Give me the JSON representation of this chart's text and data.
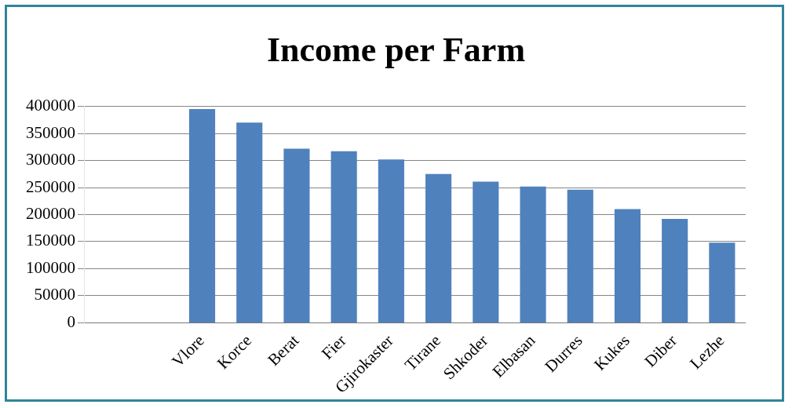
{
  "chart_data": {
    "type": "bar",
    "title": "Income per Farm",
    "categories": [
      null,
      null,
      "Vlore",
      "Korce",
      "Berat",
      "Fier",
      "Gjirokaster",
      "Tirane",
      "Shkoder",
      "Elbasan",
      "Durres",
      "Kukes",
      "Diber",
      "Lezhe"
    ],
    "values": [
      null,
      null,
      395000,
      370000,
      322000,
      317000,
      302000,
      275000,
      261000,
      252000,
      246000,
      210000,
      192000,
      148000
    ],
    "color": "#4f81bd",
    "ylim": [
      0,
      400000
    ],
    "yticks": [
      0,
      50000,
      100000,
      150000,
      200000,
      250000,
      300000,
      350000,
      400000
    ],
    "grid": "y",
    "legend": false
  }
}
